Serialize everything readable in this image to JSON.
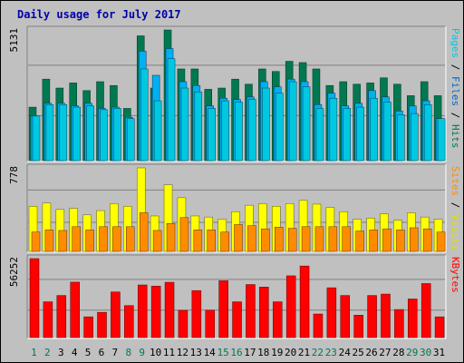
{
  "title": "Daily usage for July 2017",
  "colors": {
    "background": "#c0c0c0",
    "title": "#0000aa",
    "hits": "#007850",
    "files": "#00b0f0",
    "pages": "#00c8e0",
    "visits": "#ffff00",
    "sites": "#ff8c00",
    "kbytes": "#ff0000",
    "weekday": "#000000",
    "weekend": "#007850"
  },
  "chart_data": [
    {
      "type": "bar",
      "name": "hits-files-pages",
      "ymax_label": "5131",
      "ymax": 5131,
      "axis_label_parts": [
        {
          "text": "Pages",
          "color": "#00c8e0"
        },
        {
          "text": " / ",
          "color": "#000000"
        },
        {
          "text": "Files",
          "color": "#0066cc"
        },
        {
          "text": " / ",
          "color": "#000000"
        },
        {
          "text": "Hits",
          "color": "#007850"
        }
      ],
      "series": [
        {
          "name": "Hits",
          "values": [
            2100,
            3200,
            2850,
            3050,
            2750,
            3100,
            2950,
            2050,
            4900,
            2850,
            5131,
            3600,
            3600,
            2800,
            2850,
            3200,
            3000,
            3600,
            3500,
            3900,
            3850,
            3600,
            2950,
            3100,
            3000,
            3050,
            3250,
            3000,
            2550,
            3100,
            2550
          ]
        },
        {
          "name": "Files",
          "values": [
            1750,
            2250,
            2250,
            2150,
            2250,
            2050,
            2100,
            1700,
            4300,
            3350,
            4400,
            3100,
            2950,
            2150,
            2450,
            2400,
            2500,
            3100,
            2900,
            3200,
            3100,
            2200,
            2650,
            2150,
            2250,
            2750,
            2500,
            1950,
            2150,
            2350,
            1650
          ]
        },
        {
          "name": "Pages",
          "values": [
            1750,
            2200,
            2200,
            2100,
            2150,
            2000,
            2050,
            1650,
            3600,
            2350,
            4000,
            2850,
            2700,
            2050,
            2350,
            2300,
            2400,
            2850,
            2650,
            3100,
            2900,
            2050,
            2450,
            2050,
            2100,
            2450,
            2300,
            1800,
            1850,
            2200,
            1650
          ]
        }
      ]
    },
    {
      "type": "bar",
      "name": "visits-sites",
      "ymax_label": "778",
      "ymax": 778,
      "axis_label_parts": [
        {
          "text": "Sites",
          "color": "#ff8c00"
        },
        {
          "text": " / ",
          "color": "#000000"
        },
        {
          "text": "Visits",
          "color": "#e0e000"
        }
      ],
      "series": [
        {
          "name": "Visits",
          "values": [
            420,
            450,
            390,
            400,
            340,
            380,
            445,
            420,
            778,
            330,
            620,
            500,
            330,
            320,
            300,
            370,
            430,
            445,
            420,
            445,
            475,
            440,
            410,
            370,
            300,
            310,
            350,
            290,
            360,
            320,
            300
          ]
        },
        {
          "name": "Sites",
          "values": [
            180,
            200,
            195,
            230,
            200,
            230,
            230,
            230,
            360,
            195,
            260,
            315,
            200,
            200,
            180,
            250,
            240,
            210,
            225,
            215,
            230,
            230,
            230,
            230,
            190,
            200,
            210,
            200,
            220,
            210,
            180
          ]
        }
      ]
    },
    {
      "type": "bar",
      "name": "kbytes",
      "ymax_label": "56252",
      "ymax": 56252,
      "axis_label_parts": [
        {
          "text": "KBytes",
          "color": "#ff0000"
        }
      ],
      "series": [
        {
          "name": "KBytes",
          "values": [
            56252,
            25500,
            30000,
            39500,
            14800,
            18000,
            32500,
            22800,
            37500,
            36700,
            39400,
            19400,
            33500,
            19500,
            40500,
            25500,
            37800,
            36000,
            25500,
            44000,
            51000,
            16800,
            35500,
            30000,
            16000,
            30000,
            31000,
            20000,
            27500,
            38500,
            14800
          ]
        }
      ]
    }
  ],
  "days": [
    {
      "label": "1",
      "weekend": true
    },
    {
      "label": "2",
      "weekend": true
    },
    {
      "label": "3",
      "weekend": false
    },
    {
      "label": "4",
      "weekend": false
    },
    {
      "label": "5",
      "weekend": false
    },
    {
      "label": "6",
      "weekend": false
    },
    {
      "label": "7",
      "weekend": false
    },
    {
      "label": "8",
      "weekend": true
    },
    {
      "label": "9",
      "weekend": true
    },
    {
      "label": "10",
      "weekend": false
    },
    {
      "label": "11",
      "weekend": false
    },
    {
      "label": "12",
      "weekend": false
    },
    {
      "label": "13",
      "weekend": false
    },
    {
      "label": "14",
      "weekend": false
    },
    {
      "label": "15",
      "weekend": true
    },
    {
      "label": "16",
      "weekend": true
    },
    {
      "label": "17",
      "weekend": false
    },
    {
      "label": "18",
      "weekend": false
    },
    {
      "label": "19",
      "weekend": false
    },
    {
      "label": "20",
      "weekend": false
    },
    {
      "label": "21",
      "weekend": false
    },
    {
      "label": "22",
      "weekend": true
    },
    {
      "label": "23",
      "weekend": true
    },
    {
      "label": "24",
      "weekend": false
    },
    {
      "label": "25",
      "weekend": false
    },
    {
      "label": "26",
      "weekend": false
    },
    {
      "label": "27",
      "weekend": false
    },
    {
      "label": "28",
      "weekend": false
    },
    {
      "label": "29",
      "weekend": true
    },
    {
      "label": "30",
      "weekend": true
    },
    {
      "label": "31",
      "weekend": false
    }
  ]
}
